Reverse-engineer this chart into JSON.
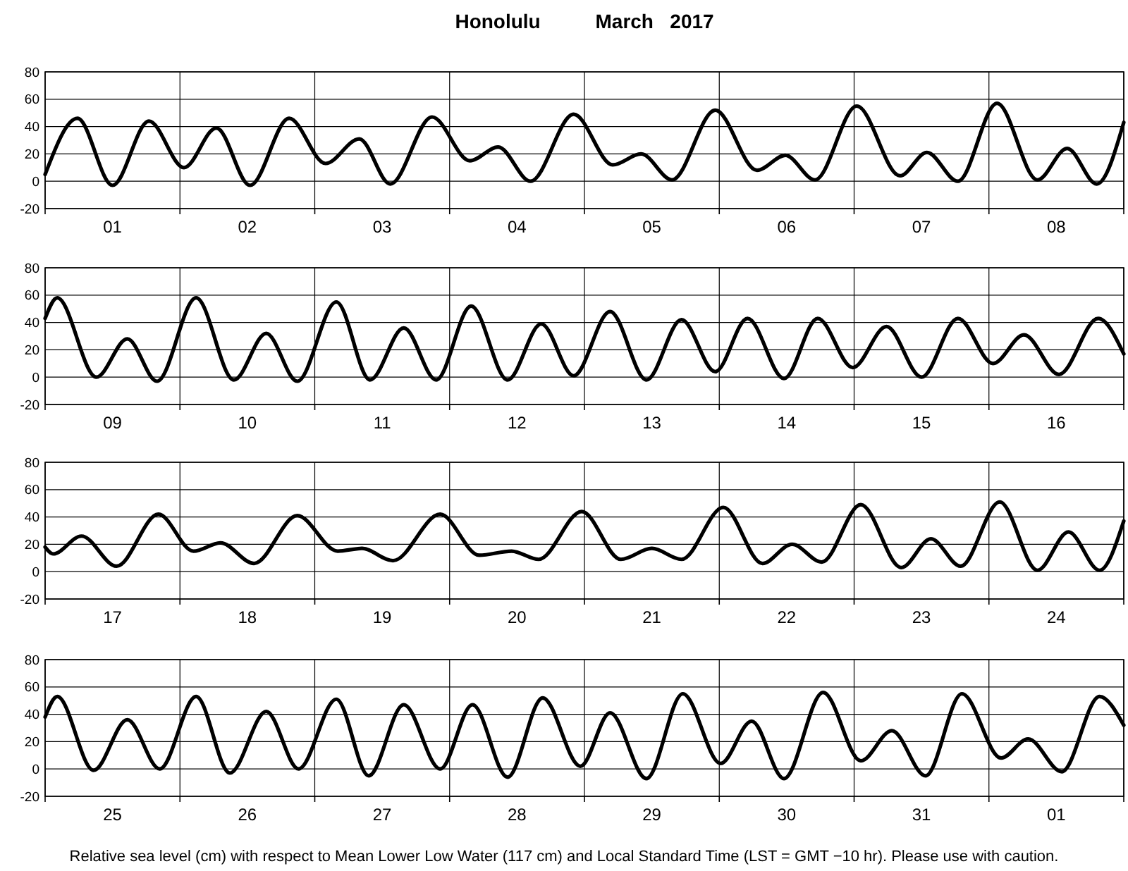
{
  "chart_data": [
    {
      "type": "line",
      "title": "Honolulu          March   2017",
      "color": "#000000",
      "xlim": [
        1,
        9
      ],
      "ylim": [
        -20,
        80
      ],
      "yticks": [
        -20,
        0,
        20,
        40,
        60,
        80
      ],
      "grid": true,
      "xticks": [
        {
          "value": 1,
          "label": null
        },
        {
          "value": 1.5,
          "label": "01"
        },
        {
          "value": 2,
          "label": null
        },
        {
          "value": 2.5,
          "label": "02"
        },
        {
          "value": 3,
          "label": null
        },
        {
          "value": 3.5,
          "label": "03"
        },
        {
          "value": 4,
          "label": null
        },
        {
          "value": 4.5,
          "label": "04"
        },
        {
          "value": 5,
          "label": null
        },
        {
          "value": 5.5,
          "label": "05"
        },
        {
          "value": 6,
          "label": null
        },
        {
          "value": 6.5,
          "label": "06"
        },
        {
          "value": 7,
          "label": null
        },
        {
          "value": 7.5,
          "label": "07"
        },
        {
          "value": 8,
          "label": null
        },
        {
          "value": 8.5,
          "label": "08"
        },
        {
          "value": 9,
          "label": null
        }
      ],
      "x": [
        1.0,
        1.24,
        1.5,
        1.77,
        2.03,
        2.27,
        2.52,
        2.81,
        3.08,
        3.33,
        3.56,
        3.87,
        4.15,
        4.36,
        4.6,
        4.92,
        5.21,
        5.42,
        5.65,
        5.97,
        6.28,
        6.49,
        6.71,
        7.02,
        7.34,
        7.54,
        7.77,
        8.06,
        8.36,
        8.58,
        8.8,
        9.0
      ],
      "values": [
        5,
        46,
        -3,
        44,
        10,
        39,
        -3,
        46,
        13,
        31,
        -2,
        47,
        15,
        25,
        0,
        49,
        12,
        20,
        1,
        52,
        8,
        19,
        1,
        55,
        4,
        21,
        0,
        57,
        1,
        24,
        -2,
        43
      ]
    },
    {
      "type": "line",
      "color": "#000000",
      "xlim": [
        9,
        17
      ],
      "ylim": [
        -20,
        80
      ],
      "yticks": [
        -20,
        0,
        20,
        40,
        60,
        80
      ],
      "grid": true,
      "xticks": [
        {
          "value": 9,
          "label": null
        },
        {
          "value": 9.5,
          "label": "09"
        },
        {
          "value": 10,
          "label": null
        },
        {
          "value": 10.5,
          "label": "10"
        },
        {
          "value": 11,
          "label": null
        },
        {
          "value": 11.5,
          "label": "11"
        },
        {
          "value": 12,
          "label": null
        },
        {
          "value": 12.5,
          "label": "12"
        },
        {
          "value": 13,
          "label": null
        },
        {
          "value": 13.5,
          "label": "13"
        },
        {
          "value": 14,
          "label": null
        },
        {
          "value": 14.5,
          "label": "14"
        },
        {
          "value": 15,
          "label": null
        },
        {
          "value": 15.5,
          "label": "15"
        },
        {
          "value": 16,
          "label": null
        },
        {
          "value": 16.5,
          "label": "16"
        },
        {
          "value": 17,
          "label": null
        }
      ],
      "x": [
        9.0,
        9.09,
        9.38,
        9.61,
        9.83,
        10.12,
        10.4,
        10.64,
        10.87,
        11.16,
        11.41,
        11.66,
        11.9,
        12.16,
        12.43,
        12.68,
        12.92,
        13.19,
        13.46,
        13.72,
        13.97,
        14.21,
        14.48,
        14.73,
        14.99,
        15.24,
        15.5,
        15.77,
        16.03,
        16.26,
        16.52,
        16.81,
        17.0
      ],
      "values": [
        43,
        58,
        0,
        28,
        -3,
        58,
        -2,
        32,
        -3,
        55,
        -2,
        36,
        -2,
        52,
        -2,
        39,
        1,
        48,
        -2,
        42,
        4,
        43,
        -1,
        43,
        7,
        37,
        0,
        43,
        10,
        31,
        2,
        43,
        17
      ]
    },
    {
      "type": "line",
      "color": "#000000",
      "xlim": [
        17,
        25
      ],
      "ylim": [
        -20,
        80
      ],
      "yticks": [
        -20,
        0,
        20,
        40,
        60,
        80
      ],
      "grid": true,
      "xticks": [
        {
          "value": 17,
          "label": null
        },
        {
          "value": 17.5,
          "label": "17"
        },
        {
          "value": 18,
          "label": null
        },
        {
          "value": 18.5,
          "label": "18"
        },
        {
          "value": 19,
          "label": null
        },
        {
          "value": 19.5,
          "label": "19"
        },
        {
          "value": 20,
          "label": null
        },
        {
          "value": 20.5,
          "label": "20"
        },
        {
          "value": 21,
          "label": null
        },
        {
          "value": 21.5,
          "label": "21"
        },
        {
          "value": 22,
          "label": null
        },
        {
          "value": 22.5,
          "label": "22"
        },
        {
          "value": 23,
          "label": null
        },
        {
          "value": 23.5,
          "label": "23"
        },
        {
          "value": 24,
          "label": null
        },
        {
          "value": 24.5,
          "label": "24"
        },
        {
          "value": 25,
          "label": null
        }
      ],
      "x": [
        17.0,
        17.06,
        17.27,
        17.53,
        17.84,
        18.1,
        18.3,
        18.55,
        18.87,
        19.17,
        19.35,
        19.58,
        19.93,
        20.22,
        20.46,
        20.66,
        20.98,
        21.27,
        21.5,
        21.72,
        22.03,
        22.32,
        22.54,
        22.76,
        23.05,
        23.35,
        23.57,
        23.79,
        24.08,
        24.36,
        24.59,
        24.82,
        25.0
      ],
      "values": [
        18,
        13,
        26,
        4,
        42,
        15,
        21,
        6,
        41,
        15,
        17,
        8,
        42,
        12,
        15,
        9,
        44,
        9,
        17,
        9,
        47,
        6,
        20,
        7,
        49,
        3,
        24,
        4,
        51,
        1,
        29,
        1,
        37
      ]
    },
    {
      "type": "line",
      "color": "#000000",
      "xlim": [
        "2017-03-25",
        "2017-04-02"
      ],
      "ylim": [
        -20,
        80
      ],
      "yticks": [
        -20,
        0,
        20,
        40,
        60,
        80
      ],
      "grid": true,
      "xticks": [
        {
          "value": "2017-03-25",
          "label": null
        },
        {
          "value": "2017-03-25T12:00",
          "label": "25"
        },
        {
          "value": "2017-03-26",
          "label": null
        },
        {
          "value": "2017-03-26T12:00",
          "label": "26"
        },
        {
          "value": "2017-03-27",
          "label": null
        },
        {
          "value": "2017-03-27T12:00",
          "label": "27"
        },
        {
          "value": "2017-03-28",
          "label": null
        },
        {
          "value": "2017-03-28T12:00",
          "label": "28"
        },
        {
          "value": "2017-03-29",
          "label": null
        },
        {
          "value": "2017-03-29T12:00",
          "label": "29"
        },
        {
          "value": "2017-03-30",
          "label": null
        },
        {
          "value": "2017-03-30T12:00",
          "label": "30"
        },
        {
          "value": "2017-03-31",
          "label": null
        },
        {
          "value": "2017-03-31T12:00",
          "label": "31"
        },
        {
          "value": "2017-04-01",
          "label": null
        },
        {
          "value": "2017-04-01T12:00",
          "label": "01"
        },
        {
          "value": "2017-04-02",
          "label": null
        }
      ],
      "x": [
        "2017-03-25T00:00",
        "2017-03-25T02:10",
        "2017-03-25T08:38",
        "2017-03-25T14:38",
        "2017-03-25T20:24",
        "2017-03-26T02:53",
        "2017-03-26T08:53",
        "2017-03-26T15:22",
        "2017-03-26T21:07",
        "2017-03-27T03:50",
        "2017-03-27T09:36",
        "2017-03-27T15:50",
        "2017-03-27T22:19",
        "2017-03-28T04:05",
        "2017-03-28T10:19",
        "2017-03-28T16:34",
        "2017-03-28T23:17",
        "2017-03-29T04:34",
        "2017-03-29T11:02",
        "2017-03-29T17:31",
        "2017-03-30T00:14",
        "2017-03-30T05:46",
        "2017-03-30T11:31",
        "2017-03-30T18:29",
        "2017-03-31T01:12",
        "2017-03-31T06:43",
        "2017-03-31T12:43",
        "2017-03-31T19:12",
        "2017-04-01T02:10",
        "2017-04-01T06:58",
        "2017-04-01T12:58",
        "2017-04-01T19:41",
        "2017-04-02T00:00"
      ],
      "values": [
        38,
        53,
        -1,
        36,
        0,
        53,
        -3,
        42,
        0,
        51,
        -5,
        47,
        0,
        47,
        -6,
        52,
        2,
        41,
        -7,
        55,
        4,
        35,
        -7,
        56,
        6,
        28,
        -5,
        55,
        8,
        22,
        -2,
        53,
        32
      ],
      "annotations": [
        "Relative sea level (cm) with respect to Mean Lower Low Water (117 cm) and Local Standard Time (LST = GMT −10 hr). Please use with caution."
      ]
    }
  ]
}
